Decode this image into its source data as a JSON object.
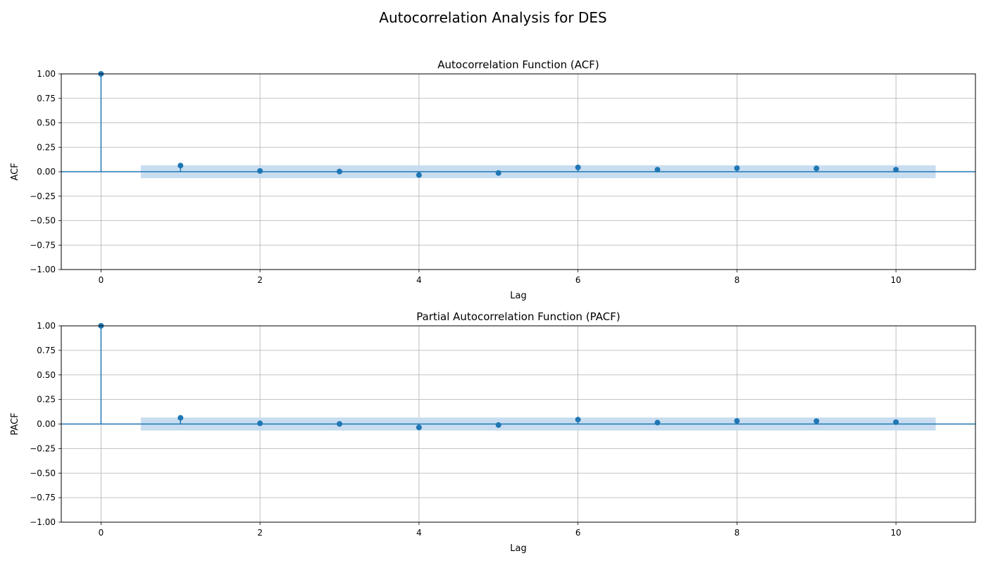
{
  "figure": {
    "suptitle": "Autocorrelation Analysis for DES"
  },
  "chart_data": [
    {
      "type": "scatter",
      "title": "Autocorrelation Function (ACF)",
      "xlabel": "Lag",
      "ylabel": "ACF",
      "x": [
        0,
        1,
        2,
        3,
        4,
        5,
        6,
        7,
        8,
        9,
        10
      ],
      "values": [
        1.0,
        0.063,
        0.008,
        0.002,
        -0.034,
        -0.013,
        0.044,
        0.021,
        0.036,
        0.034,
        0.021
      ],
      "confidence_band": 0.066,
      "xlim": [
        -0.5,
        11.0
      ],
      "ylim": [
        -1.0,
        1.0
      ],
      "xticks": [
        0,
        2,
        4,
        6,
        8,
        10
      ],
      "yticks": [
        -1.0,
        -0.75,
        -0.5,
        -0.25,
        0.0,
        0.25,
        0.5,
        0.75,
        1.0
      ],
      "ytick_labels": [
        "−1.00",
        "−0.75",
        "−0.50",
        "−0.25",
        "0.00",
        "0.25",
        "0.50",
        "0.75",
        "1.00"
      ],
      "grid": true,
      "color": "#1f77b4",
      "band_color": "#c6dbef"
    },
    {
      "type": "scatter",
      "title": "Partial Autocorrelation Function (PACF)",
      "xlabel": "Lag",
      "ylabel": "PACF",
      "x": [
        0,
        1,
        2,
        3,
        4,
        5,
        6,
        7,
        8,
        9,
        10
      ],
      "values": [
        1.0,
        0.063,
        0.007,
        0.001,
        -0.035,
        -0.01,
        0.045,
        0.014,
        0.031,
        0.03,
        0.019
      ],
      "confidence_band": 0.066,
      "xlim": [
        -0.5,
        11.0
      ],
      "ylim": [
        -1.0,
        1.0
      ],
      "xticks": [
        0,
        2,
        4,
        6,
        8,
        10
      ],
      "yticks": [
        -1.0,
        -0.75,
        -0.5,
        -0.25,
        0.0,
        0.25,
        0.5,
        0.75,
        1.0
      ],
      "ytick_labels": [
        "−1.00",
        "−0.75",
        "−0.50",
        "−0.25",
        "0.00",
        "0.25",
        "0.50",
        "0.75",
        "1.00"
      ],
      "grid": true,
      "color": "#1f77b4",
      "band_color": "#c6dbef"
    }
  ]
}
